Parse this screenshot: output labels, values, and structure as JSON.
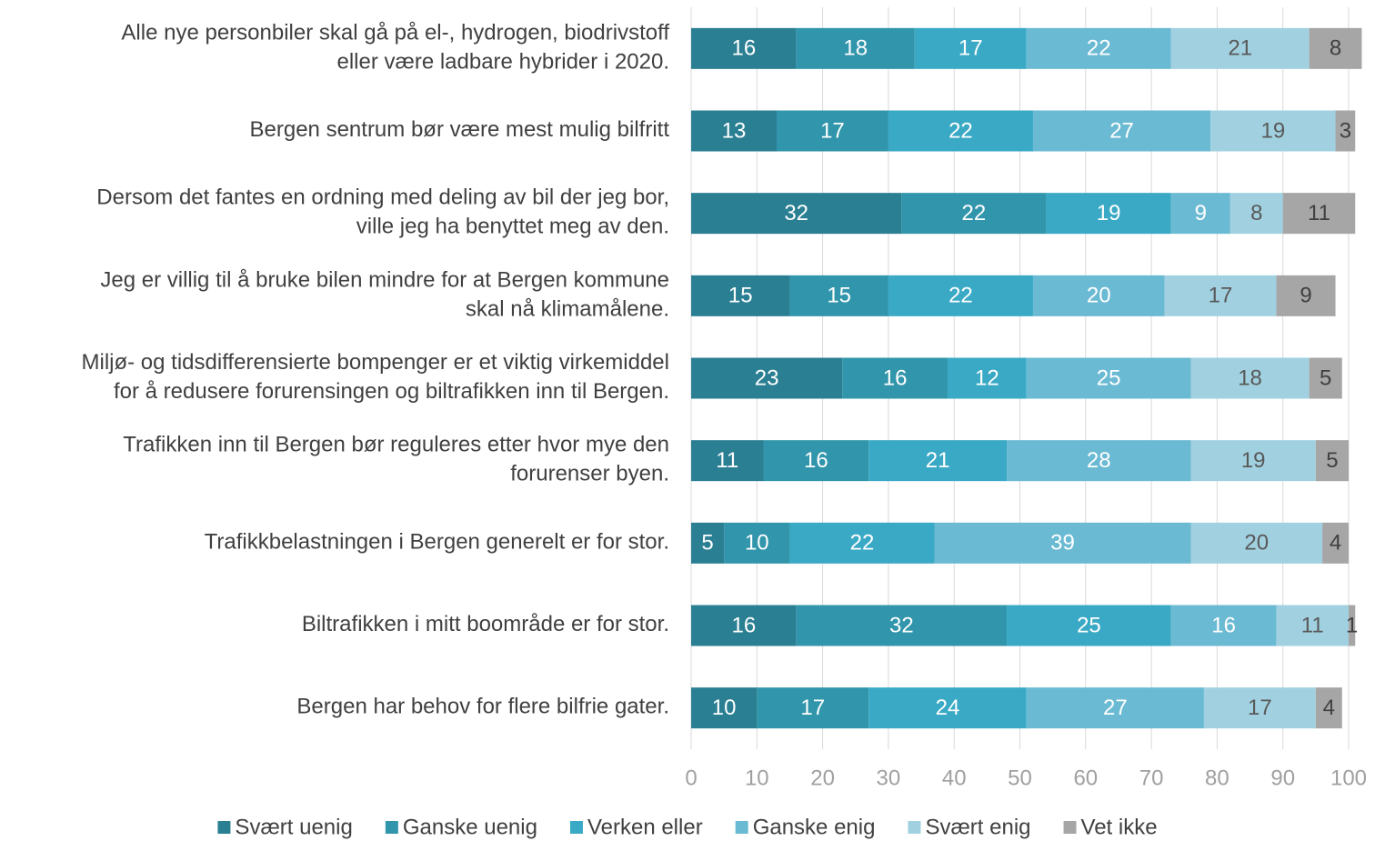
{
  "chart_data": {
    "type": "stacked-bar-horizontal",
    "categories": [
      "Alle nye personbiler skal gå på el-, hydrogen, biodrivstoff\neller være ladbare hybrider i 2020.",
      "Bergen sentrum bør være mest mulig bilfritt",
      "Dersom det fantes en ordning med deling av bil der jeg bor,\nville jeg ha benyttet meg av den.",
      "Jeg er villig til å bruke bilen mindre for at Bergen kommune\nskal nå klimamålene.",
      "Miljø- og tidsdifferensierte bompenger er et viktig virkemiddel\nfor å redusere forurensingen og biltrafikken inn til Bergen.",
      "Trafikken inn til Bergen bør reguleres etter hvor mye den\nforurenser byen.",
      "Trafikkbelastningen i Bergen generelt er for stor.",
      "Biltrafikken i mitt boområde er for stor.",
      "Bergen har behov for flere bilfrie gater."
    ],
    "series": [
      {
        "name": "Svært uenig",
        "color": "#2b7f93",
        "label_color": "#ffffff",
        "values": [
          16,
          13,
          32,
          15,
          23,
          11,
          5,
          16,
          10
        ]
      },
      {
        "name": "Ganske uenig",
        "color": "#3195ab",
        "label_color": "#ffffff",
        "values": [
          18,
          17,
          22,
          15,
          16,
          16,
          10,
          32,
          17
        ]
      },
      {
        "name": "Verken eller",
        "color": "#3aa9c5",
        "label_color": "#ffffff",
        "values": [
          17,
          22,
          19,
          22,
          12,
          21,
          22,
          25,
          24
        ]
      },
      {
        "name": "Ganske enig",
        "color": "#6bbad3",
        "label_color": "#ffffff",
        "values": [
          22,
          27,
          9,
          20,
          25,
          28,
          39,
          16,
          27
        ]
      },
      {
        "name": "Svært enig",
        "color": "#a1d1e1",
        "label_color": "#595959",
        "values": [
          21,
          19,
          8,
          17,
          18,
          19,
          20,
          11,
          17
        ]
      },
      {
        "name": "Vet ikke",
        "color": "#a6a6a6",
        "label_color": "#404040",
        "values": [
          8,
          3,
          11,
          9,
          5,
          5,
          4,
          1,
          4
        ]
      }
    ],
    "xlim": [
      0,
      100
    ],
    "xticks": [
      0,
      10,
      20,
      30,
      40,
      50,
      60,
      70,
      80,
      90,
      100
    ],
    "grid": true,
    "legend": "bottom"
  }
}
